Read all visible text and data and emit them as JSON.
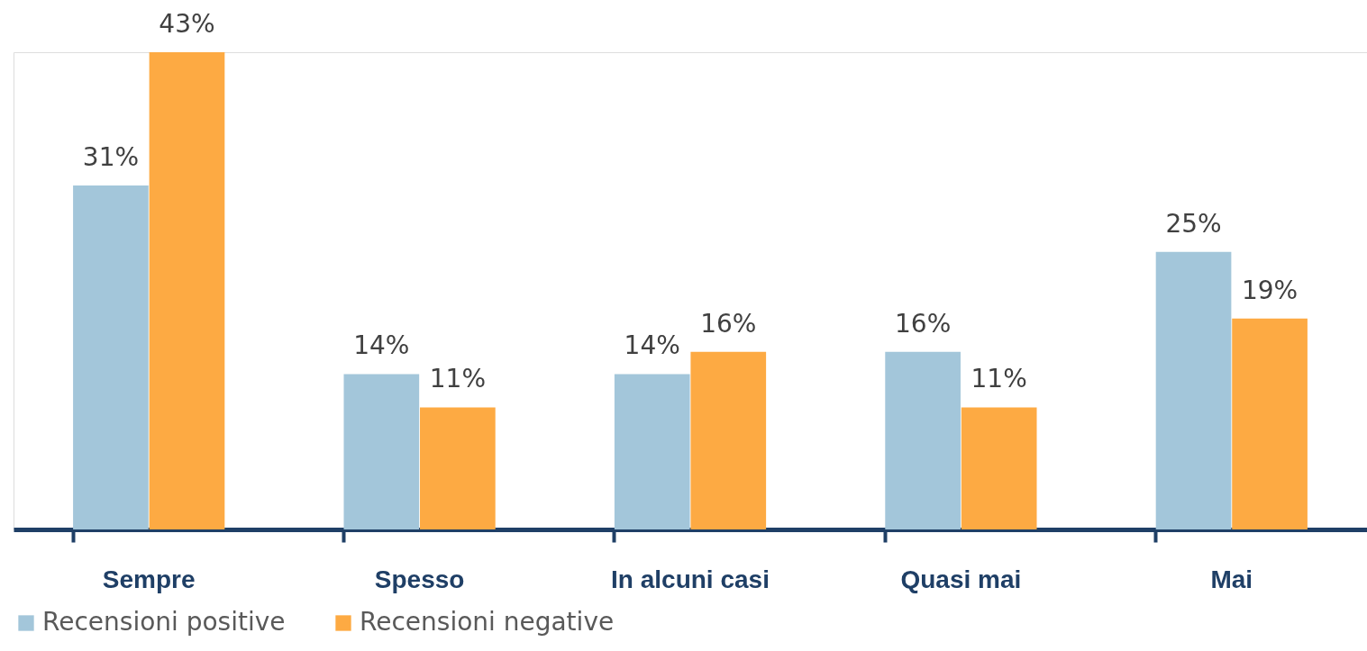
{
  "chart_data": {
    "type": "bar",
    "categories": [
      "Sempre",
      "Spesso",
      "In alcuni casi",
      "Quasi mai",
      "Mai"
    ],
    "series": [
      {
        "name": "Recensioni positive",
        "color": "#a3c6da",
        "values": [
          31,
          14,
          14,
          16,
          25
        ],
        "value_labels": [
          "31%",
          "14%",
          "14%",
          "16%",
          "25%"
        ]
      },
      {
        "name": "Recensioni negative",
        "color": "#fdaa43",
        "values": [
          43,
          11,
          16,
          11,
          19
        ],
        "value_labels": [
          "43%",
          "11%",
          "16%",
          "11%",
          "19%"
        ]
      }
    ],
    "legend": "bottom",
    "grid": false
  }
}
